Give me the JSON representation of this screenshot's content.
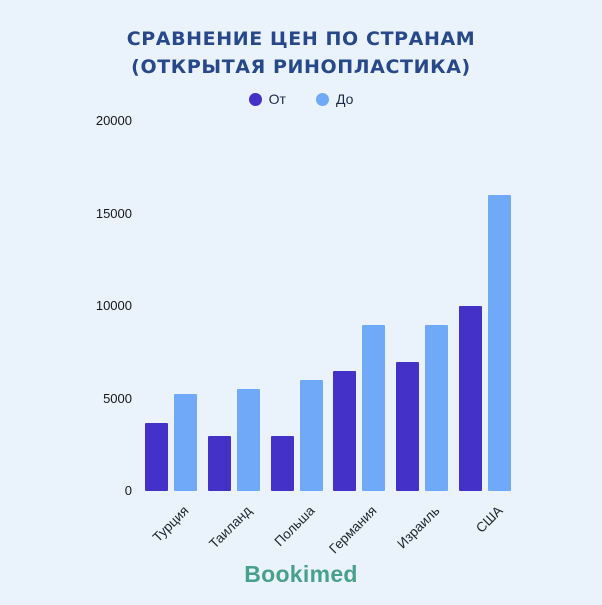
{
  "page": {
    "background": "#eaf2fb",
    "logo": "Bookimed"
  },
  "chart_data": {
    "type": "bar",
    "title": "СРАВНЕНИЕ ЦЕН ПО СТРАНАМ (ОТКРЫТАЯ РИНОПЛАСТИКА)",
    "title_lines": [
      "СРАВНЕНИЕ ЦЕН ПО СТРАНАМ",
      "(ОТКРЫТАЯ РИНОПЛАСТИКА)"
    ],
    "categories": [
      "Турция",
      "Таиланд",
      "Польша",
      "Германия",
      "Израиль",
      "США"
    ],
    "series": [
      {
        "name": "От",
        "color": "#4331c8",
        "values": [
          3700,
          3000,
          3000,
          6500,
          7000,
          10000
        ]
      },
      {
        "name": "До",
        "color": "#6fa9f8",
        "values": [
          5250,
          5500,
          6000,
          9000,
          9000,
          16000
        ]
      }
    ],
    "xlabel": "",
    "ylabel": "",
    "ylim": [
      0,
      20000
    ],
    "yticks": [
      0,
      5000,
      10000,
      15000,
      20000
    ],
    "grid": false,
    "legend_position": "top",
    "title_color": "#27498a",
    "background_color": "#eaf2fb"
  }
}
